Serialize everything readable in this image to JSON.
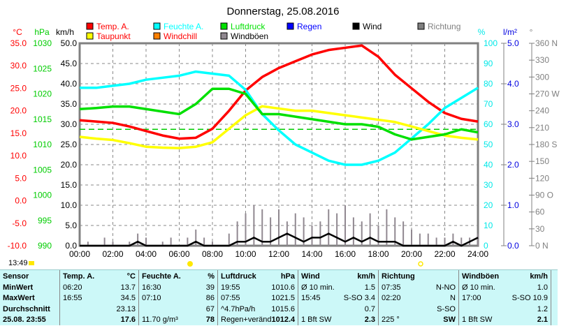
{
  "chart_data": {
    "type": "line",
    "title": "Donnerstag, 25.08.2016",
    "legend": [
      {
        "label": "Temp. A.",
        "color": "#ff0000"
      },
      {
        "label": "Feuchte A.",
        "color": "#00ffff"
      },
      {
        "label": "Luftdruck",
        "color": "#00e000"
      },
      {
        "label": "Regen",
        "color": "#0000ff"
      },
      {
        "label": "Wind",
        "color": "#000000"
      },
      {
        "label": "Richtung",
        "color": "#808080"
      },
      {
        "label": "Taupunkt",
        "color": "#ffff00"
      },
      {
        "label": "Windchill",
        "color": "#ff8000"
      },
      {
        "label": "Windböen",
        "color": "#908890"
      }
    ],
    "axes": {
      "temp": {
        "unit": "°C",
        "range": [
          -10,
          35
        ],
        "ticks": [
          "35.0",
          "30.0",
          "25.0",
          "20.0",
          "15.0",
          "10.0",
          "5.0",
          "0.0",
          "-5.0",
          "-10.0"
        ],
        "color": "#ff0000"
      },
      "pressure": {
        "unit": "hPa",
        "range": [
          990,
          1030
        ],
        "ticks": [
          "1030",
          "1025",
          "1020",
          "1015",
          "1010",
          "1005",
          "1000",
          "995",
          "990"
        ],
        "color": "#00cc00"
      },
      "wind": {
        "unit": "km/h",
        "range": [
          0,
          50
        ],
        "ticks": [
          "50.0",
          "45.0",
          "40.0",
          "35.0",
          "30.0",
          "25.0",
          "20.0",
          "15.0",
          "10.0",
          "5.0",
          "0.0"
        ],
        "color": "#000000"
      },
      "humidity": {
        "unit": "%",
        "range": [
          0,
          100
        ],
        "ticks": [
          "100",
          "90",
          "80",
          "70",
          "60",
          "50",
          "40",
          "30",
          "20",
          "10",
          "0"
        ],
        "color": "#00e8e8"
      },
      "rain": {
        "unit": "l/m²",
        "range": [
          0,
          5
        ],
        "ticks": [
          "5.0",
          "4.0",
          "3.0",
          "2.0",
          "1.0",
          "0.0"
        ],
        "color": "#0000e0"
      },
      "direction": {
        "unit": "°",
        "range": [
          0,
          360
        ],
        "ticks": [
          "360 N",
          "330",
          "300",
          "270 W",
          "240",
          "210",
          "180 S",
          "150",
          "120",
          "90  O",
          "60",
          "30",
          "0    N"
        ],
        "color": "#808080"
      }
    },
    "x_ticks": [
      "00:00",
      "02:00",
      "04:00",
      "06:00",
      "08:00",
      "10:00",
      "12:00",
      "14:00",
      "16:00",
      "18:00",
      "20:00",
      "22:00",
      "24:00"
    ],
    "hours": [
      0,
      1,
      2,
      3,
      4,
      5,
      6,
      7,
      8,
      9,
      10,
      11,
      12,
      13,
      14,
      15,
      16,
      17,
      18,
      19,
      20,
      21,
      22,
      23,
      24
    ],
    "series": [
      {
        "name": "Temp. A.",
        "axis": "temp",
        "values": [
          17.9,
          17.6,
          17.3,
          16.5,
          15.5,
          14.5,
          13.8,
          14,
          16,
          20,
          24.5,
          27.5,
          29.5,
          31,
          32.5,
          33.5,
          34,
          34.5,
          32,
          28,
          25,
          22,
          19.5,
          18.2,
          17.6
        ]
      },
      {
        "name": "Feuchte A.",
        "axis": "humidity",
        "values": [
          78,
          78,
          79,
          80,
          82,
          83,
          84,
          86,
          85,
          84,
          77,
          65,
          57,
          50,
          46,
          42,
          40,
          40,
          42,
          46,
          53,
          60,
          68,
          73,
          78
        ]
      },
      {
        "name": "Taupunkt",
        "axis": "temp",
        "values": [
          14.2,
          13.8,
          13.5,
          12.8,
          12,
          11.8,
          11.7,
          12,
          13,
          16,
          19,
          21,
          20.5,
          20,
          20,
          19.5,
          19,
          18.5,
          18,
          17.5,
          16.5,
          15.5,
          14.5,
          14,
          13.6
        ]
      },
      {
        "name": "Luftdruck",
        "axis": "pressure",
        "values": [
          1017,
          1017.2,
          1017.5,
          1017.5,
          1017,
          1016.5,
          1016,
          1018,
          1021,
          1021,
          1020,
          1016,
          1016,
          1015.5,
          1015,
          1014.5,
          1014,
          1014,
          1013.5,
          1012,
          1011,
          1011.5,
          1012,
          1013,
          1012.4
        ]
      }
    ],
    "wind_gusts": [
      0,
      1,
      0,
      2,
      1,
      0,
      1,
      3,
      2,
      0,
      1,
      2,
      0,
      2,
      4,
      2,
      1,
      0,
      3,
      6,
      8,
      10,
      9,
      7,
      9,
      6,
      8,
      7,
      5,
      6,
      9,
      8,
      10,
      7,
      6,
      8,
      5,
      9,
      7,
      6,
      4,
      3,
      3,
      2,
      2,
      3,
      2,
      2,
      3
    ],
    "wind": [
      0,
      0,
      0,
      0,
      0,
      0,
      0,
      1,
      0,
      0,
      0,
      0,
      0,
      0,
      1,
      0,
      0,
      0,
      0,
      1,
      1,
      2,
      1,
      1,
      2,
      3,
      2,
      1,
      2,
      2,
      3,
      2,
      1,
      2,
      1,
      2,
      1,
      1,
      1,
      0,
      0,
      0,
      0,
      0,
      0,
      1,
      0,
      1,
      2
    ],
    "reference_line_hpa": 1013
  },
  "status": {
    "time": "13:49"
  },
  "table": [
    {
      "head": [
        "Sensor",
        ""
      ],
      "rows": [
        [
          "MinWert",
          ""
        ],
        [
          "MaxWert",
          ""
        ],
        [
          "Durchschnitt",
          ""
        ],
        [
          "25.08. 23:55",
          ""
        ]
      ]
    },
    {
      "head": [
        "Temp. A.",
        "°C"
      ],
      "rows": [
        [
          "06:20",
          "13.7"
        ],
        [
          "16:55",
          "34.5"
        ],
        [
          "",
          "23.13"
        ],
        [
          "",
          "17.6"
        ]
      ]
    },
    {
      "head": [
        "Feuchte A.",
        "%"
      ],
      "rows": [
        [
          "16:30",
          "39"
        ],
        [
          "07:10",
          "86"
        ],
        [
          "",
          "67"
        ],
        [
          "11.70 g/m³",
          "78"
        ]
      ]
    },
    {
      "head": [
        "Luftdruck",
        "hPa"
      ],
      "rows": [
        [
          "19:55",
          "1010.6"
        ],
        [
          "07:55",
          "1021.5"
        ],
        [
          "^4.7hPa/h",
          "1015.6"
        ],
        [
          "Regen+veränd",
          "1012.4"
        ]
      ]
    },
    {
      "head": [
        "Wind",
        "km/h"
      ],
      "rows": [
        [
          "Ø 10 min.",
          "1.5"
        ],
        [
          "15:45",
          "S-SO 3.4"
        ],
        [
          "",
          "0.7"
        ],
        [
          "1 Bft SW",
          "2.3"
        ]
      ]
    },
    {
      "head": [
        "Richtung",
        ""
      ],
      "rows": [
        [
          "07:35",
          "N-NO"
        ],
        [
          "02:20",
          "N"
        ],
        [
          "",
          "S-SO"
        ],
        [
          "225 °",
          "SW"
        ]
      ]
    },
    {
      "head": [
        "Windböen",
        "km/h"
      ],
      "rows": [
        [
          "Ø 10 min.",
          "1.0"
        ],
        [
          "17:00",
          "S-SO 10.9"
        ],
        [
          "",
          "1.2"
        ],
        [
          "1 Bft SW",
          "2.1"
        ]
      ]
    }
  ]
}
